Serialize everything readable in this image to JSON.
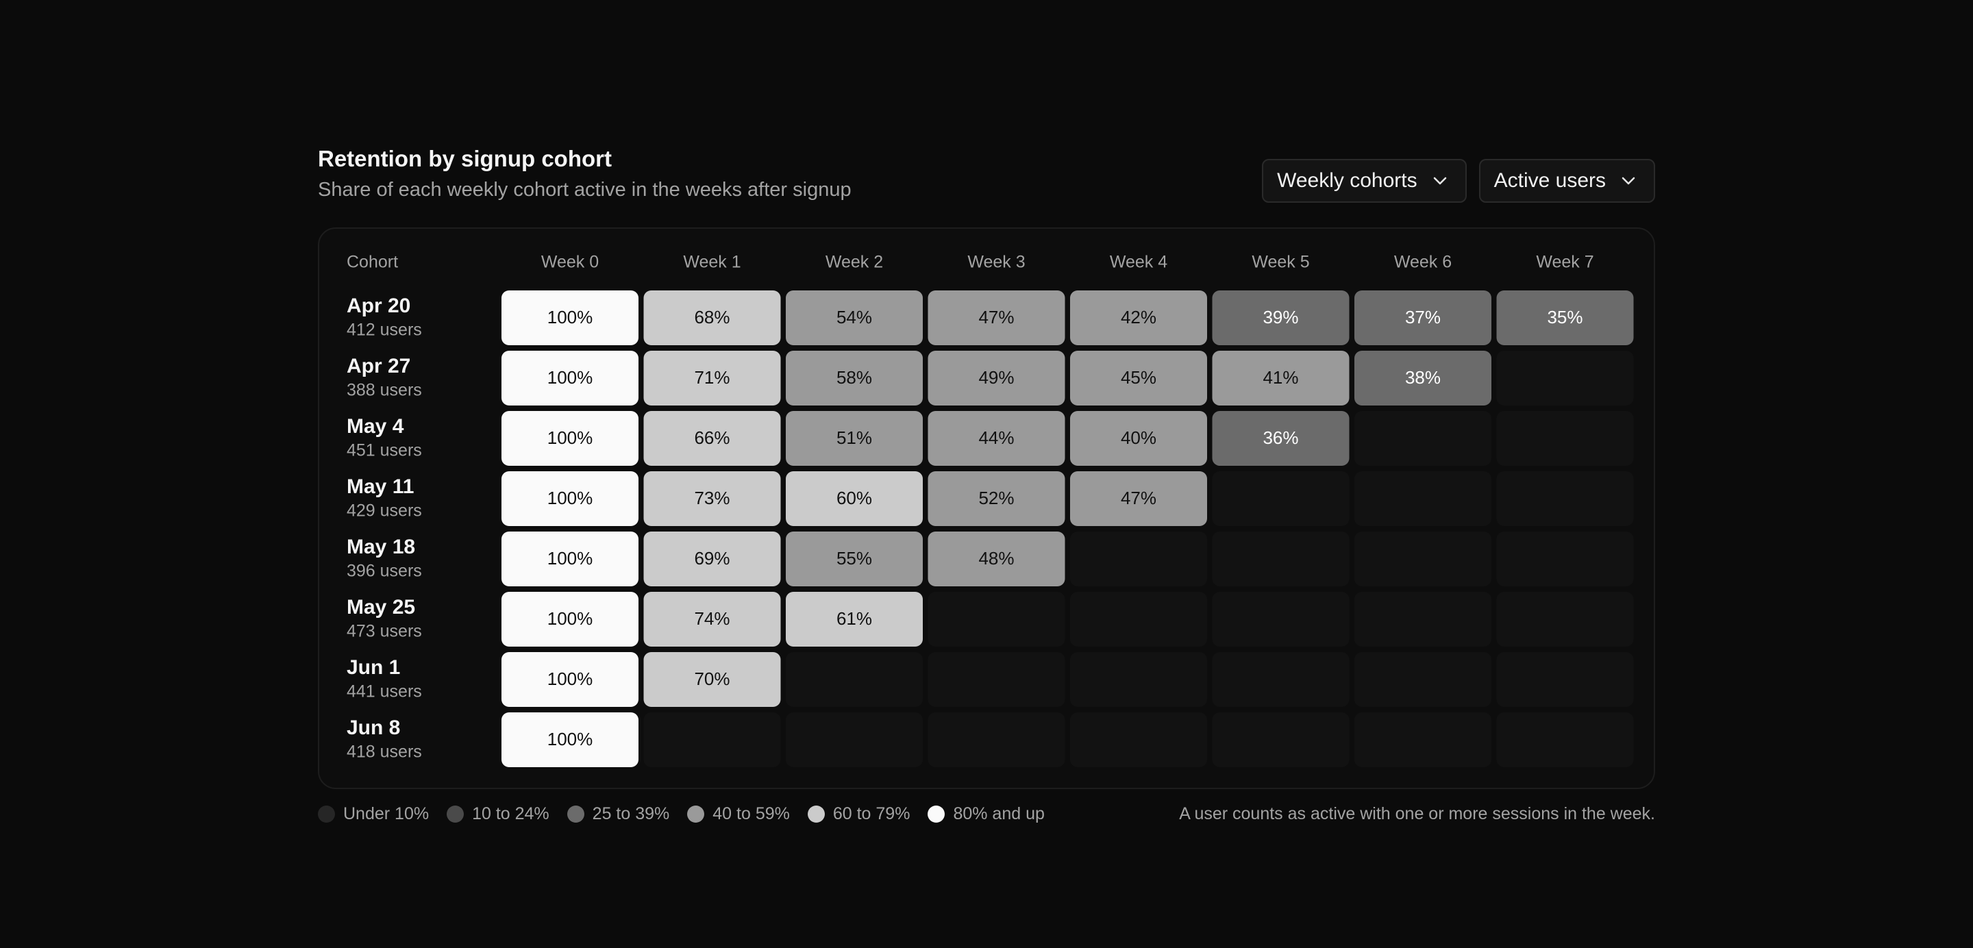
{
  "header": {
    "title": "Retention by signup cohort",
    "subtitle": "Share of each weekly cohort active in the weeks after signup"
  },
  "controls": {
    "cohort_select": "Weekly cohorts",
    "metric_select": "Active users"
  },
  "chart_data": {
    "type": "heatmap",
    "row_header": "Cohort",
    "columns": [
      "Week 0",
      "Week 1",
      "Week 2",
      "Week 3",
      "Week 4",
      "Week 5",
      "Week 6",
      "Week 7"
    ],
    "rows": [
      {
        "cohort": "Apr 20",
        "users": "412 users",
        "values": [
          100,
          68,
          54,
          47,
          42,
          39,
          37,
          35
        ]
      },
      {
        "cohort": "Apr 27",
        "users": "388 users",
        "values": [
          100,
          71,
          58,
          49,
          45,
          41,
          38
        ]
      },
      {
        "cohort": "May 4",
        "users": "451 users",
        "values": [
          100,
          66,
          51,
          44,
          40,
          36
        ]
      },
      {
        "cohort": "May 11",
        "users": "429 users",
        "values": [
          100,
          73,
          60,
          52,
          47
        ]
      },
      {
        "cohort": "May 18",
        "users": "396 users",
        "values": [
          100,
          69,
          55,
          48
        ]
      },
      {
        "cohort": "May 25",
        "users": "473 users",
        "values": [
          100,
          74,
          61
        ]
      },
      {
        "cohort": "Jun 1",
        "users": "441 users",
        "values": [
          100,
          70
        ]
      },
      {
        "cohort": "Jun 8",
        "users": "418 users",
        "values": [
          100
        ]
      }
    ],
    "value_suffix": "%",
    "color_scale": [
      {
        "label": "Under 10%",
        "min": 0,
        "max": 10,
        "color": "#262626",
        "text": "#ffffff"
      },
      {
        "label": "10 to 24%",
        "min": 10,
        "max": 25,
        "color": "#4a4a4a",
        "text": "#ffffff"
      },
      {
        "label": "25 to 39%",
        "min": 25,
        "max": 40,
        "color": "#6b6b6b",
        "text": "#ffffff"
      },
      {
        "label": "40 to 59%",
        "min": 40,
        "max": 60,
        "color": "#9a9a9a",
        "text": "#111111"
      },
      {
        "label": "60 to 79%",
        "min": 60,
        "max": 80,
        "color": "#cbcbcb",
        "text": "#111111"
      },
      {
        "label": "80% and up",
        "min": 80,
        "max": 1000,
        "color": "#fafafa",
        "text": "#111111"
      }
    ],
    "empty_color": "#121212"
  },
  "footnote": "A user counts as active with one or more sessions in the week."
}
